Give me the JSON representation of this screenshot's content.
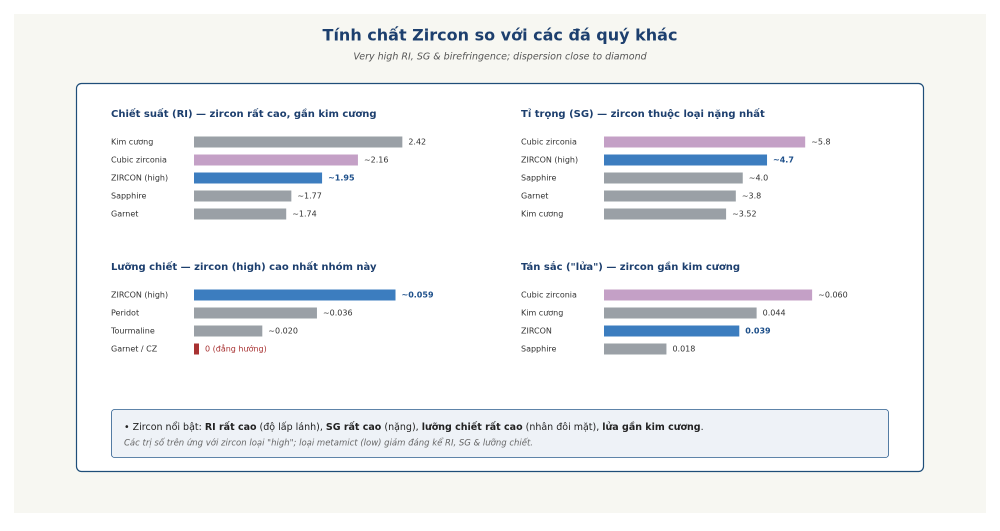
{
  "title": "Tính chất Zircon so với các đá quý khác",
  "subtitle": "Very high RI, SG & birefringence; dispersion close to diamond",
  "chart_data": [
    {
      "type": "bar",
      "orientation": "horizontal",
      "title": "Chiết suất (RI) — zircon rất cao, gần kim cương",
      "categories": [
        "Kim cương",
        "Cubic zirconia",
        "ZIRCON (high)",
        "Sapphire",
        "Garnet"
      ],
      "values": [
        2.42,
        2.16,
        1.95,
        1.77,
        1.74
      ],
      "value_labels": [
        "2.42",
        "~2.16",
        "~1.95",
        "~1.77",
        "~1.74"
      ],
      "colors": [
        "#9aa0a6",
        "#c4a0c6",
        "#3c7dbf",
        "#9aa0a6",
        "#9aa0a6"
      ],
      "xlim": [
        1.2,
        2.5
      ]
    },
    {
      "type": "bar",
      "orientation": "horizontal",
      "title": "Tỉ trọng (SG) — zircon thuộc loại nặng nhất",
      "categories": [
        "Cubic zirconia",
        "ZIRCON (high)",
        "Sapphire",
        "Garnet",
        "Kim cương"
      ],
      "values": [
        5.8,
        4.7,
        4.0,
        3.8,
        3.52
      ],
      "value_labels": [
        "~5.8",
        "~4.7",
        "~4.0",
        "~3.8",
        "~3.52"
      ],
      "colors": [
        "#c4a0c6",
        "#3c7dbf",
        "#9aa0a6",
        "#9aa0a6",
        "#9aa0a6"
      ],
      "xlim": [
        0,
        6.4
      ]
    },
    {
      "type": "bar",
      "orientation": "horizontal",
      "title": "Lưỡng chiết — zircon (high) cao nhất nhóm này",
      "categories": [
        "ZIRCON (high)",
        "Peridot",
        "Tourmaline",
        "Garnet / CZ"
      ],
      "values": [
        0.059,
        0.036,
        0.02,
        0
      ],
      "value_labels": [
        "~0.059",
        "~0.036",
        "~0.020",
        "0 (đẳng hướng)"
      ],
      "colors": [
        "#3c7dbf",
        "#9aa0a6",
        "#9aa0a6",
        "#a83232"
      ],
      "xlim": [
        0,
        0.065
      ]
    },
    {
      "type": "bar",
      "orientation": "horizontal",
      "title": "Tán sắc (\"lửa\") — zircon gần kim cương",
      "categories": [
        "Cubic zirconia",
        "Kim cương",
        "ZIRCON",
        "Sapphire"
      ],
      "values": [
        0.06,
        0.044,
        0.039,
        0.018
      ],
      "value_labels": [
        "~0.060",
        "0.044",
        "0.039",
        "0.018"
      ],
      "colors": [
        "#c4a0c6",
        "#9aa0a6",
        "#3c7dbf",
        "#9aa0a6"
      ],
      "xlim": [
        0,
        0.064
      ]
    }
  ],
  "note": {
    "parts": [
      "• Zircon nổi bật: ",
      "RI rất cao",
      " (độ lấp lánh), ",
      "SG rất cao",
      " (nặng), ",
      "lưỡng chiết rất cao",
      " (nhân đôi mặt), ",
      "lửa gần kim cương",
      "."
    ],
    "caption": "Các trị số trên ứng với zircon loại \"high\"; loại metamict (low) giảm đáng kể RI, SG & lưỡng chiết."
  }
}
